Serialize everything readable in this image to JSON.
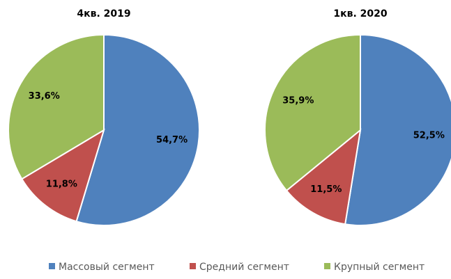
{
  "chart_data": [
    {
      "type": "pie",
      "title": "4кв. 2019",
      "categories": [
        "Массовый сегмент",
        "Средний сегмент",
        "Крупный сегмент"
      ],
      "values": [
        54.7,
        11.8,
        33.6
      ],
      "value_labels": [
        "54,7%",
        "11,8%",
        "33,6%"
      ],
      "colors": [
        "#4f81bd",
        "#c0504d",
        "#9bbb59"
      ]
    },
    {
      "type": "pie",
      "title": "1кв. 2020",
      "categories": [
        "Массовый сегмент",
        "Средний сегмент",
        "Крупный сегмент"
      ],
      "values": [
        52.5,
        11.5,
        35.9
      ],
      "value_labels": [
        "52,5%",
        "11,5%",
        "35,9%"
      ],
      "colors": [
        "#4f81bd",
        "#c0504d",
        "#9bbb59"
      ]
    }
  ]
}
